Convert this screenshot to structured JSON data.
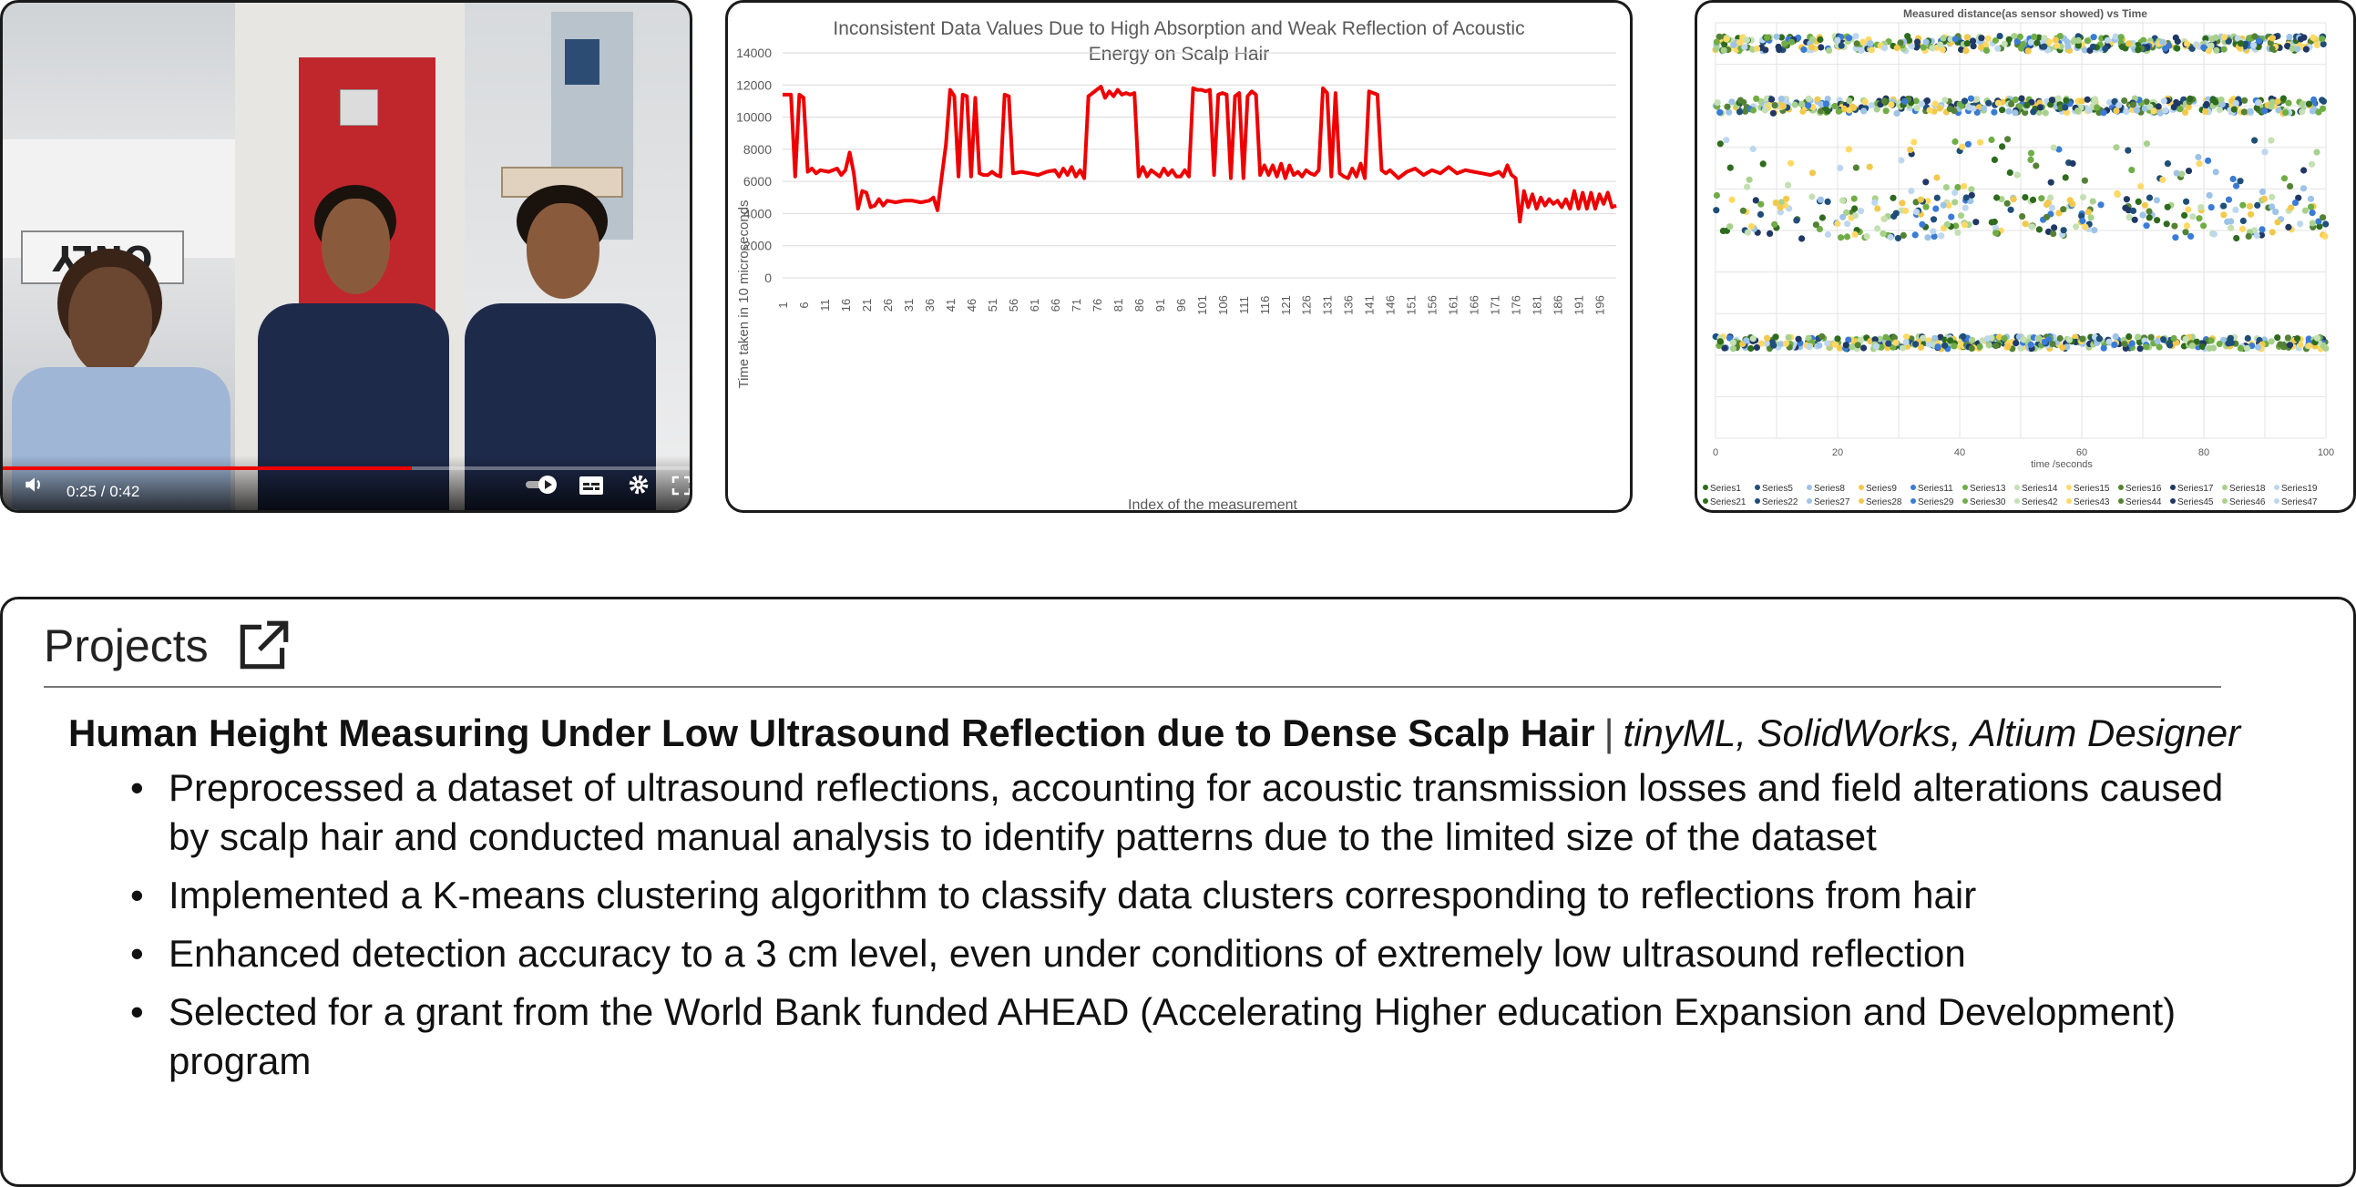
{
  "video": {
    "time": "0:25 / 0:42",
    "progress": 0.595,
    "board_text": "ONLY",
    "icons": [
      "volume-icon",
      "autoplay-toggle-icon",
      "subtitles-icon",
      "settings-icon",
      "fullscreen-icon"
    ]
  },
  "line_chart": {
    "chart_data": {
      "type": "line",
      "title": "Inconsistent Data Values Due to High Absorption and Weak Reflection of Acoustic Energy on Scalp Hair",
      "xlabel": "Index of the measurement",
      "ylabel": "Time taken in 10 microseconds",
      "ylim": [
        0,
        14000
      ],
      "yticks": [
        0,
        2000,
        4000,
        6000,
        8000,
        10000,
        12000,
        14000
      ],
      "xticks": [
        1,
        6,
        11,
        16,
        21,
        26,
        31,
        36,
        41,
        46,
        51,
        56,
        61,
        66,
        71,
        76,
        81,
        86,
        91,
        96,
        101,
        106,
        111,
        116,
        121,
        126,
        131,
        136,
        141,
        146,
        151,
        156,
        161,
        166,
        171,
        176,
        181,
        186,
        191,
        196
      ],
      "x": [
        1,
        3,
        4,
        5,
        6,
        7,
        8,
        9,
        10,
        12,
        14,
        15,
        16,
        17,
        18,
        19,
        20,
        21,
        22,
        23,
        24,
        25,
        26,
        28,
        30,
        32,
        34,
        36,
        37,
        38,
        39,
        40,
        41,
        42,
        43,
        44,
        45,
        46,
        47,
        48,
        49,
        50,
        51,
        52,
        53,
        54,
        55,
        56,
        58,
        60,
        62,
        64,
        66,
        67,
        68,
        69,
        70,
        71,
        72,
        73,
        74,
        75,
        76,
        77,
        78,
        79,
        80,
        81,
        82,
        83,
        84,
        85,
        86,
        87,
        88,
        89,
        90,
        91,
        92,
        93,
        94,
        95,
        96,
        97,
        98,
        99,
        100,
        101,
        102,
        103,
        104,
        105,
        106,
        107,
        108,
        109,
        110,
        111,
        112,
        113,
        114,
        115,
        116,
        117,
        118,
        119,
        120,
        121,
        122,
        123,
        124,
        125,
        126,
        127,
        128,
        129,
        130,
        131,
        132,
        133,
        134,
        135,
        136,
        137,
        138,
        139,
        140,
        141,
        142,
        143,
        144,
        145,
        146,
        148,
        150,
        152,
        154,
        156,
        158,
        160,
        162,
        164,
        166,
        168,
        170,
        172,
        173,
        174,
        175,
        176,
        177,
        178,
        179,
        180,
        181,
        182,
        183,
        184,
        185,
        186,
        187,
        188,
        189,
        190,
        191,
        192,
        193,
        194,
        195,
        196,
        197,
        198,
        199,
        200
      ],
      "values": [
        11400,
        11400,
        6300,
        11400,
        11200,
        6600,
        6800,
        6500,
        6700,
        6600,
        6800,
        6400,
        6700,
        7800,
        6500,
        4300,
        5400,
        5300,
        4400,
        4500,
        4900,
        4500,
        4800,
        4700,
        4800,
        4800,
        4700,
        4800,
        5000,
        4200,
        6300,
        8300,
        11700,
        11300,
        6300,
        11400,
        11300,
        6300,
        11200,
        6500,
        6400,
        6400,
        6600,
        6400,
        6300,
        11400,
        11300,
        6500,
        6600,
        6500,
        6400,
        6600,
        6700,
        6300,
        6800,
        6400,
        6900,
        6300,
        6700,
        6200,
        11300,
        11500,
        11700,
        11900,
        11200,
        11600,
        11300,
        11700,
        11400,
        11500,
        11400,
        11500,
        6300,
        6900,
        6300,
        6700,
        6500,
        6300,
        6800,
        6400,
        6700,
        6300,
        6300,
        6700,
        6300,
        11800,
        11700,
        11700,
        11600,
        11700,
        6400,
        11400,
        11500,
        11400,
        6200,
        11300,
        11500,
        6200,
        11300,
        11600,
        11400,
        6400,
        7000,
        6400,
        7000,
        6300,
        7100,
        6200,
        7000,
        6400,
        6600,
        6300,
        6700,
        6500,
        6400,
        6700,
        11800,
        11500,
        6300,
        11500,
        6500,
        6300,
        6200,
        6800,
        6300,
        7100,
        6200,
        11600,
        11500,
        11400,
        6700,
        6500,
        6700,
        6200,
        6600,
        6800,
        6400,
        6700,
        6500,
        6900,
        6500,
        6700,
        6600,
        6500,
        6400,
        6600,
        6300,
        7000,
        6400,
        6200,
        3500,
        5400,
        4400,
        5200,
        4300,
        5000,
        4500,
        4900,
        4600,
        4800,
        4400,
        4900,
        4300,
        5400,
        4300,
        5300,
        4300,
        5300,
        4300,
        5200,
        4600,
        5300,
        4400,
        4500
      ]
    }
  },
  "scatter_chart": {
    "chart_data": {
      "type": "scatter",
      "title": "Measured distance(as sensor showed) vs Time",
      "xlabel": "time /seconds",
      "xlim": [
        0,
        100
      ],
      "xticks": [
        0,
        20,
        40,
        60,
        80,
        100
      ],
      "bands": [
        {
          "center_fraction": 0.05,
          "spread_fraction": 0.018
        },
        {
          "center_fraction": 0.2,
          "spread_fraction": 0.018
        },
        {
          "center_fraction": 0.47,
          "spread_fraction": 0.05
        },
        {
          "center_fraction": 0.77,
          "spread_fraction": 0.015
        }
      ],
      "legend": [
        "Series1",
        "Series5",
        "Series8",
        "Series9",
        "Series11",
        "Series13",
        "Series14",
        "Series15",
        "Series16",
        "Series17",
        "Series18",
        "Series19",
        "Series21",
        "Series22",
        "Series27",
        "Series28",
        "Series29",
        "Series30",
        "Series42",
        "Series43",
        "Series44",
        "Series45",
        "Series46",
        "Series47"
      ],
      "colors": [
        "#2e6b1e",
        "#1f4e79",
        "#9dc3e6",
        "#f2c94c",
        "#3a7bd5",
        "#70ad47",
        "#c5e0b4",
        "#ffd966",
        "#548235",
        "#203864",
        "#a9d18e",
        "#bdd7ee"
      ]
    }
  },
  "projects": {
    "title": "Projects",
    "entry": {
      "name": "Human Height Measuring Under Low Ultrasound Reflection due to Dense Scalp Hair",
      "separator": "|",
      "tools": "tinyML, SolidWorks, Altium Designer",
      "bullets": [
        "Preprocessed a dataset of ultrasound reflections, accounting for acoustic transmission losses and field alterations caused by scalp hair and conducted manual analysis to identify patterns due to the limited size of the dataset",
        "Implemented a K-means clustering algorithm to classify data clusters corresponding to reflections from hair",
        "Enhanced detection accuracy to a 3 cm level, even under conditions of extremely low ultrasound reflection",
        "Selected for a grant from the World Bank funded AHEAD (Accelerating Higher education Expansion and Development) program"
      ]
    }
  }
}
